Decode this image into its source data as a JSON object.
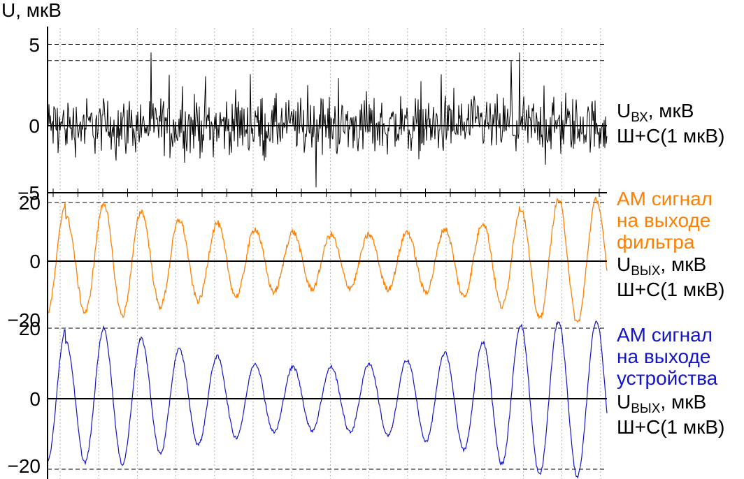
{
  "chart_data": {
    "type": "line",
    "y_axis_title": "U, мкВ",
    "colors": {
      "input": "#000000",
      "filter": "#ff8000",
      "device": "#1414c8",
      "axis": "#000000",
      "grid": "#b0b0b0"
    },
    "panels": [
      {
        "id": "input",
        "ylim": [
          -5,
          5
        ],
        "yticks": [
          "5",
          "0",
          "−5"
        ],
        "ytick_values": [
          5,
          0,
          -5
        ],
        "dashed_levels": [
          5,
          4
        ],
        "label": {
          "title_lines": [],
          "series_main": "U",
          "series_sub": "ВХ",
          "series_unit": ", мкВ",
          "note": "Ш+С(1 мкВ)"
        },
        "signal": "noise",
        "noise_peak": 4.5
      },
      {
        "id": "filter",
        "ylim": [
          -20,
          20
        ],
        "yticks": [
          "20",
          "0",
          "−20"
        ],
        "ytick_values": [
          20,
          0,
          -20
        ],
        "dashed_levels": [
          20
        ],
        "label": {
          "title_lines": [
            "АМ сигнал",
            "на выходе",
            "фильтра"
          ],
          "series_main": "U",
          "series_sub": "ВЫХ",
          "series_unit": ", мкВ",
          "note": "Ш+С(1 мкВ)"
        },
        "signal": "am",
        "peak_amplitudes": [
          15,
          20,
          17,
          14,
          13,
          11,
          10,
          9,
          9,
          10,
          11,
          13,
          18,
          21,
          21,
          21
        ]
      },
      {
        "id": "device",
        "ylim": [
          -20,
          20
        ],
        "yticks": [
          "20",
          "0",
          "−20"
        ],
        "ytick_values": [
          20,
          0,
          -20
        ],
        "dashed_levels": [
          20,
          -20
        ],
        "label": {
          "title_lines": [
            "АМ сигнал",
            "на выходе",
            "устройства"
          ],
          "series_main": "U",
          "series_sub": "ВЫХ",
          "series_unit": ", мкВ",
          "note": "Ш+С(1 мкВ)"
        },
        "signal": "am",
        "peak_amplitudes": [
          16,
          20,
          17,
          14,
          12,
          10,
          9,
          9,
          10,
          11,
          13,
          16,
          21,
          22,
          22,
          22
        ]
      }
    ],
    "vertical_gridlines": 15
  }
}
